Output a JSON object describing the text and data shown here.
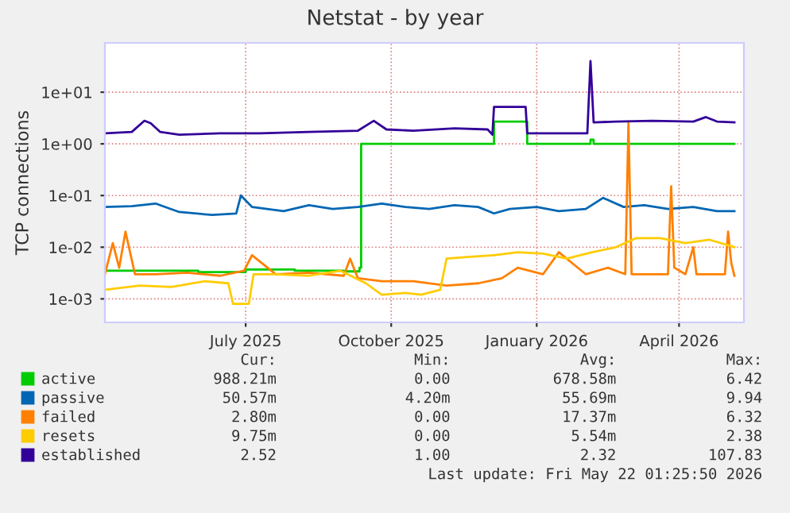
{
  "chart_data": {
    "type": "line",
    "title": "Netstat - by year",
    "ylabel": "TCP connections",
    "log": "y",
    "grid": true,
    "legend": "bottom",
    "marker": "none",
    "line_style": "solid",
    "xlim": [
      "2025-04-03",
      "2026-05-12"
    ],
    "xticks": [
      {
        "value": "2025-07-01",
        "label": "July 2025"
      },
      {
        "value": "2025-10-01",
        "label": "October 2025"
      },
      {
        "value": "2026-01-01",
        "label": "January 2026"
      },
      {
        "value": "2026-04-01",
        "label": "April 2026"
      }
    ],
    "ylim": [
      0.00035,
      90
    ],
    "yticks": [
      {
        "value": 0.001,
        "label": "1e-03"
      },
      {
        "value": 0.01,
        "label": "1e-02"
      },
      {
        "value": 0.1,
        "label": "1e-01"
      },
      {
        "value": 1,
        "label": "1e+00"
      },
      {
        "value": 10,
        "label": "1e+01"
      }
    ],
    "series": [
      {
        "name": "active",
        "color": "#00cc00",
        "type": "step",
        "x": [
          "2025-04-03",
          "2025-05-01",
          "2025-06-01",
          "2025-07-01",
          "2025-08-01",
          "2025-09-01",
          "2025-09-11",
          "2025-09-12",
          "2025-12-05",
          "2025-12-26",
          "2026-02-04",
          "2026-02-06",
          "2026-05-06"
        ],
        "values": [
          0.0035,
          0.0035,
          0.0033,
          0.0037,
          0.0035,
          0.0034,
          0.004,
          1.0,
          2.7,
          1.0,
          1.2,
          1.0,
          1.0
        ]
      },
      {
        "name": "passive",
        "color": "#0066b3",
        "x": [
          "2025-04-03",
          "2025-04-20",
          "2025-05-05",
          "2025-05-20",
          "2025-06-10",
          "2025-06-25",
          "2025-06-28",
          "2025-07-05",
          "2025-07-25",
          "2025-08-10",
          "2025-08-25",
          "2025-09-10",
          "2025-09-25",
          "2025-10-10",
          "2025-10-25",
          "2025-11-10",
          "2025-11-25",
          "2025-12-05",
          "2025-12-15",
          "2026-01-01",
          "2026-01-15",
          "2026-02-01",
          "2026-02-12",
          "2026-02-25",
          "2026-03-10",
          "2026-03-25",
          "2026-04-10",
          "2026-04-25",
          "2026-05-06"
        ],
        "values": [
          0.06,
          0.062,
          0.07,
          0.048,
          0.042,
          0.045,
          0.1,
          0.06,
          0.05,
          0.065,
          0.055,
          0.06,
          0.07,
          0.06,
          0.055,
          0.065,
          0.06,
          0.045,
          0.055,
          0.06,
          0.05,
          0.055,
          0.09,
          0.06,
          0.065,
          0.055,
          0.06,
          0.05,
          0.05
        ]
      },
      {
        "name": "failed",
        "color": "#ff8000",
        "x": [
          "2025-04-03",
          "2025-04-08",
          "2025-04-12",
          "2025-04-16",
          "2025-04-22",
          "2025-05-05",
          "2025-05-25",
          "2025-06-15",
          "2025-06-30",
          "2025-07-05",
          "2025-07-20",
          "2025-08-10",
          "2025-09-01",
          "2025-09-05",
          "2025-09-10",
          "2025-09-25",
          "2025-10-15",
          "2025-11-05",
          "2025-11-25",
          "2025-12-10",
          "2025-12-20",
          "2026-01-05",
          "2026-01-15",
          "2026-02-01",
          "2026-02-15",
          "2026-02-26",
          "2026-02-28",
          "2026-03-02",
          "2026-03-15",
          "2026-03-25",
          "2026-03-27",
          "2026-03-29",
          "2026-04-05",
          "2026-04-10",
          "2026-04-12",
          "2026-04-20",
          "2026-04-30",
          "2026-05-02",
          "2026-05-04",
          "2026-05-06"
        ],
        "values": [
          0.003,
          0.012,
          0.004,
          0.02,
          0.003,
          0.003,
          0.0032,
          0.0028,
          0.0035,
          0.007,
          0.003,
          0.0032,
          0.0028,
          0.006,
          0.0025,
          0.0022,
          0.0022,
          0.0018,
          0.002,
          0.0025,
          0.004,
          0.003,
          0.008,
          0.003,
          0.004,
          0.003,
          2.5,
          0.003,
          0.003,
          0.003,
          0.15,
          0.004,
          0.003,
          0.01,
          0.003,
          0.003,
          0.003,
          0.02,
          0.005,
          0.0028
        ]
      },
      {
        "name": "resets",
        "color": "#ffcc00",
        "x": [
          "2025-04-03",
          "2025-04-25",
          "2025-05-15",
          "2025-06-05",
          "2025-06-20",
          "2025-06-23",
          "2025-07-03",
          "2025-07-06",
          "2025-07-20",
          "2025-08-10",
          "2025-08-30",
          "2025-09-15",
          "2025-09-25",
          "2025-10-10",
          "2025-10-20",
          "2025-11-01",
          "2025-11-05",
          "2025-11-20",
          "2025-12-05",
          "2025-12-20",
          "2026-01-05",
          "2026-01-20",
          "2026-02-05",
          "2026-02-20",
          "2026-03-05",
          "2026-03-20",
          "2026-04-05",
          "2026-04-20",
          "2026-05-06"
        ],
        "values": [
          0.0015,
          0.0018,
          0.0017,
          0.0022,
          0.002,
          0.0008,
          0.0008,
          0.003,
          0.003,
          0.0028,
          0.0035,
          0.002,
          0.0012,
          0.0013,
          0.0012,
          0.0015,
          0.006,
          0.0065,
          0.007,
          0.008,
          0.0075,
          0.006,
          0.008,
          0.01,
          0.015,
          0.015,
          0.012,
          0.014,
          0.01
        ]
      },
      {
        "name": "established",
        "color": "#330099",
        "x": [
          "2025-04-03",
          "2025-04-20",
          "2025-04-28",
          "2025-05-02",
          "2025-05-08",
          "2025-05-20",
          "2025-06-15",
          "2025-07-10",
          "2025-08-10",
          "2025-09-10",
          "2025-09-20",
          "2025-09-28",
          "2025-10-15",
          "2025-11-10",
          "2025-12-01",
          "2025-12-04",
          "2025-12-05",
          "2025-12-25",
          "2025-12-26",
          "2026-01-15",
          "2026-02-02",
          "2026-02-04",
          "2026-02-06",
          "2026-02-20",
          "2026-03-15",
          "2026-04-10",
          "2026-04-18",
          "2026-04-25",
          "2026-05-06"
        ],
        "values": [
          1.6,
          1.7,
          2.8,
          2.5,
          1.7,
          1.5,
          1.6,
          1.6,
          1.7,
          1.8,
          2.8,
          1.9,
          1.8,
          2.0,
          1.9,
          1.5,
          5.2,
          5.2,
          1.6,
          1.6,
          1.6,
          40,
          2.6,
          2.7,
          2.8,
          2.7,
          3.3,
          2.7,
          2.6
        ]
      }
    ],
    "annotations": [
      "Cur:",
      "Min:",
      "Avg:",
      "Max:",
      "988.21m",
      "0.00",
      "678.58m",
      "6.42",
      "50.57m",
      "4.20m",
      "55.69m",
      "9.94",
      "2.80m",
      "0.00",
      "17.37m",
      "6.32",
      "9.75m",
      "0.00",
      "5.54m",
      "2.38",
      "2.52",
      "1.00",
      "2.32",
      "107.83",
      "Last update: Fri May 22 01:25:50 2026"
    ]
  }
}
